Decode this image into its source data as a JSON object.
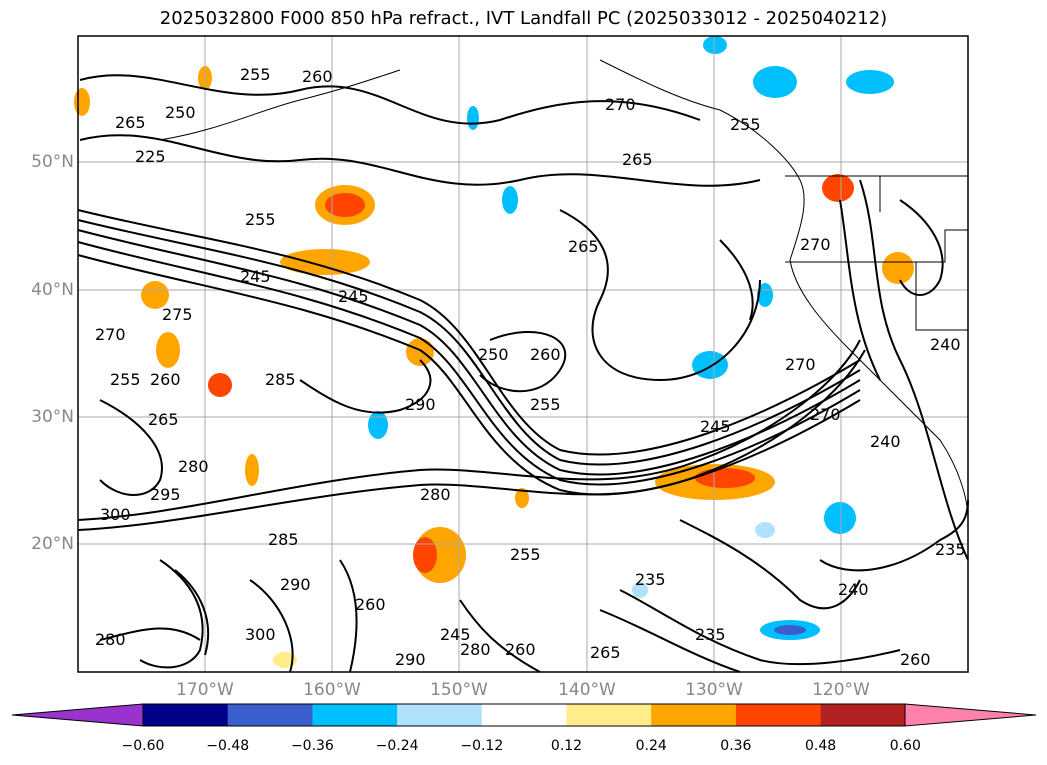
{
  "title": "2025032800 F000 850 hPa refract., IVT Landfall PC (2025033012 - 2025040212)",
  "lat_labels": [
    "50°N",
    "40°N",
    "30°N",
    "20°N"
  ],
  "lon_labels": [
    "170°W",
    "160°W",
    "150°W",
    "140°W",
    "130°W",
    "120°W"
  ],
  "colorbar": {
    "ticks": [
      "−0.60",
      "−0.48",
      "−0.36",
      "−0.24",
      "−0.12",
      "0.12",
      "0.24",
      "0.36",
      "0.48",
      "0.60"
    ],
    "colors": [
      "#9a32cd",
      "#00008b",
      "#3a5fcd",
      "#00bfff",
      "#b0e2ff",
      "#ffffff",
      "#ffec8b",
      "#ffa500",
      "#ff4500",
      "#b22222",
      "#ff82ab"
    ]
  },
  "contour_labels": [
    "255",
    "260",
    "250",
    "265",
    "225",
    "270",
    "265",
    "255",
    "265",
    "270",
    "245",
    "245",
    "275",
    "250",
    "260",
    "270",
    "255",
    "285",
    "290",
    "255",
    "260",
    "265",
    "270",
    "280",
    "295",
    "300",
    "280",
    "285",
    "290",
    "300",
    "260",
    "245",
    "255",
    "260",
    "280",
    "280",
    "290",
    "265",
    "235",
    "235",
    "240",
    "245",
    "240",
    "270",
    "240",
    "235",
    "260",
    "255"
  ]
}
